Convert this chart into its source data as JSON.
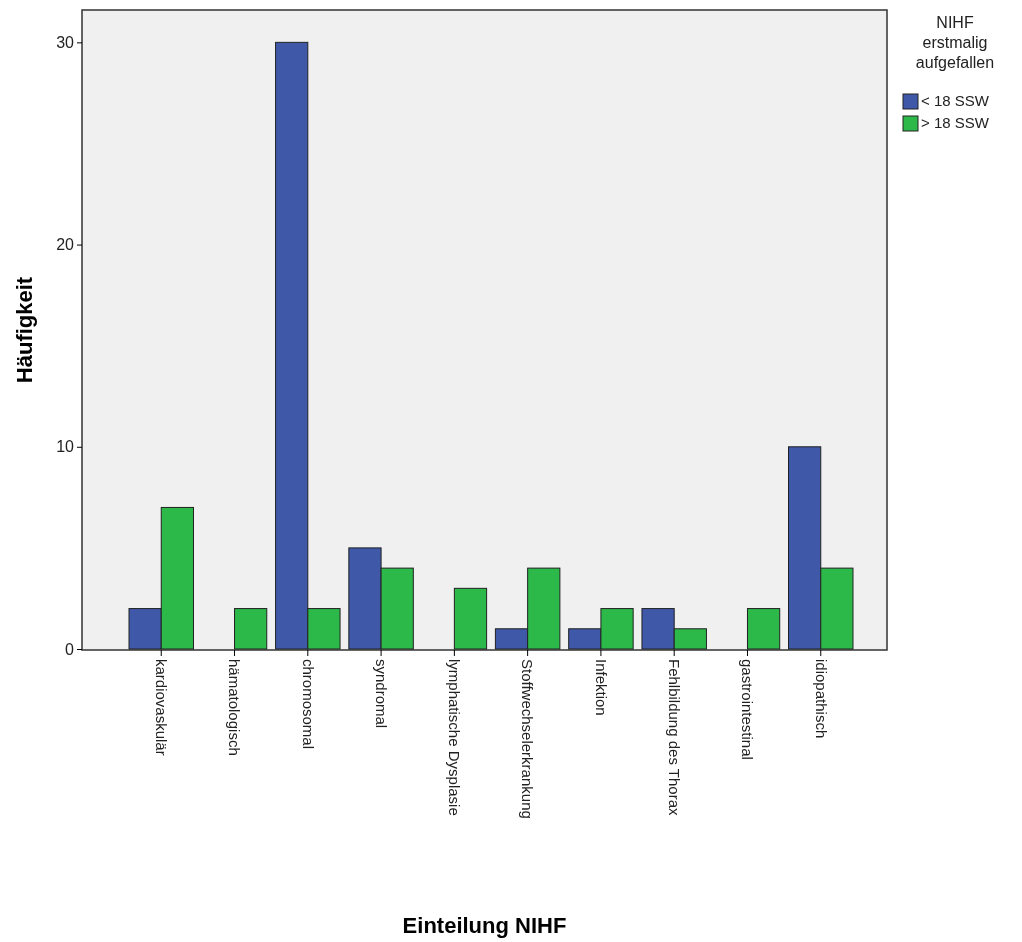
{
  "chart_data": {
    "type": "bar",
    "xlabel": "Einteilung NIHF",
    "ylabel": "Häufigkeit",
    "legend_title": "NIHF erstmalig aufgefallen",
    "categories": [
      "kardiovaskulär",
      "hämatologisch",
      "chromosomal",
      "syndromal",
      "lymphatische Dysplasie",
      "Stoffwechselerkrankung",
      "Infektion",
      "Fehlbildung des Thorax",
      "gastrointestinal",
      "idiopathisch"
    ],
    "series": [
      {
        "name": "< 18 SSW",
        "color": "#3f58a8",
        "values": [
          2,
          0,
          30,
          5,
          0,
          1,
          1,
          2,
          0,
          10
        ]
      },
      {
        "name": "> 18 SSW",
        "color": "#2db84a",
        "values": [
          7,
          2,
          2,
          4,
          3,
          4,
          2,
          1,
          2,
          4
        ]
      }
    ],
    "ylim": [
      0,
      31.6
    ],
    "yticks": [
      0,
      10,
      20,
      30
    ],
    "grid": false,
    "legend": "top right"
  }
}
